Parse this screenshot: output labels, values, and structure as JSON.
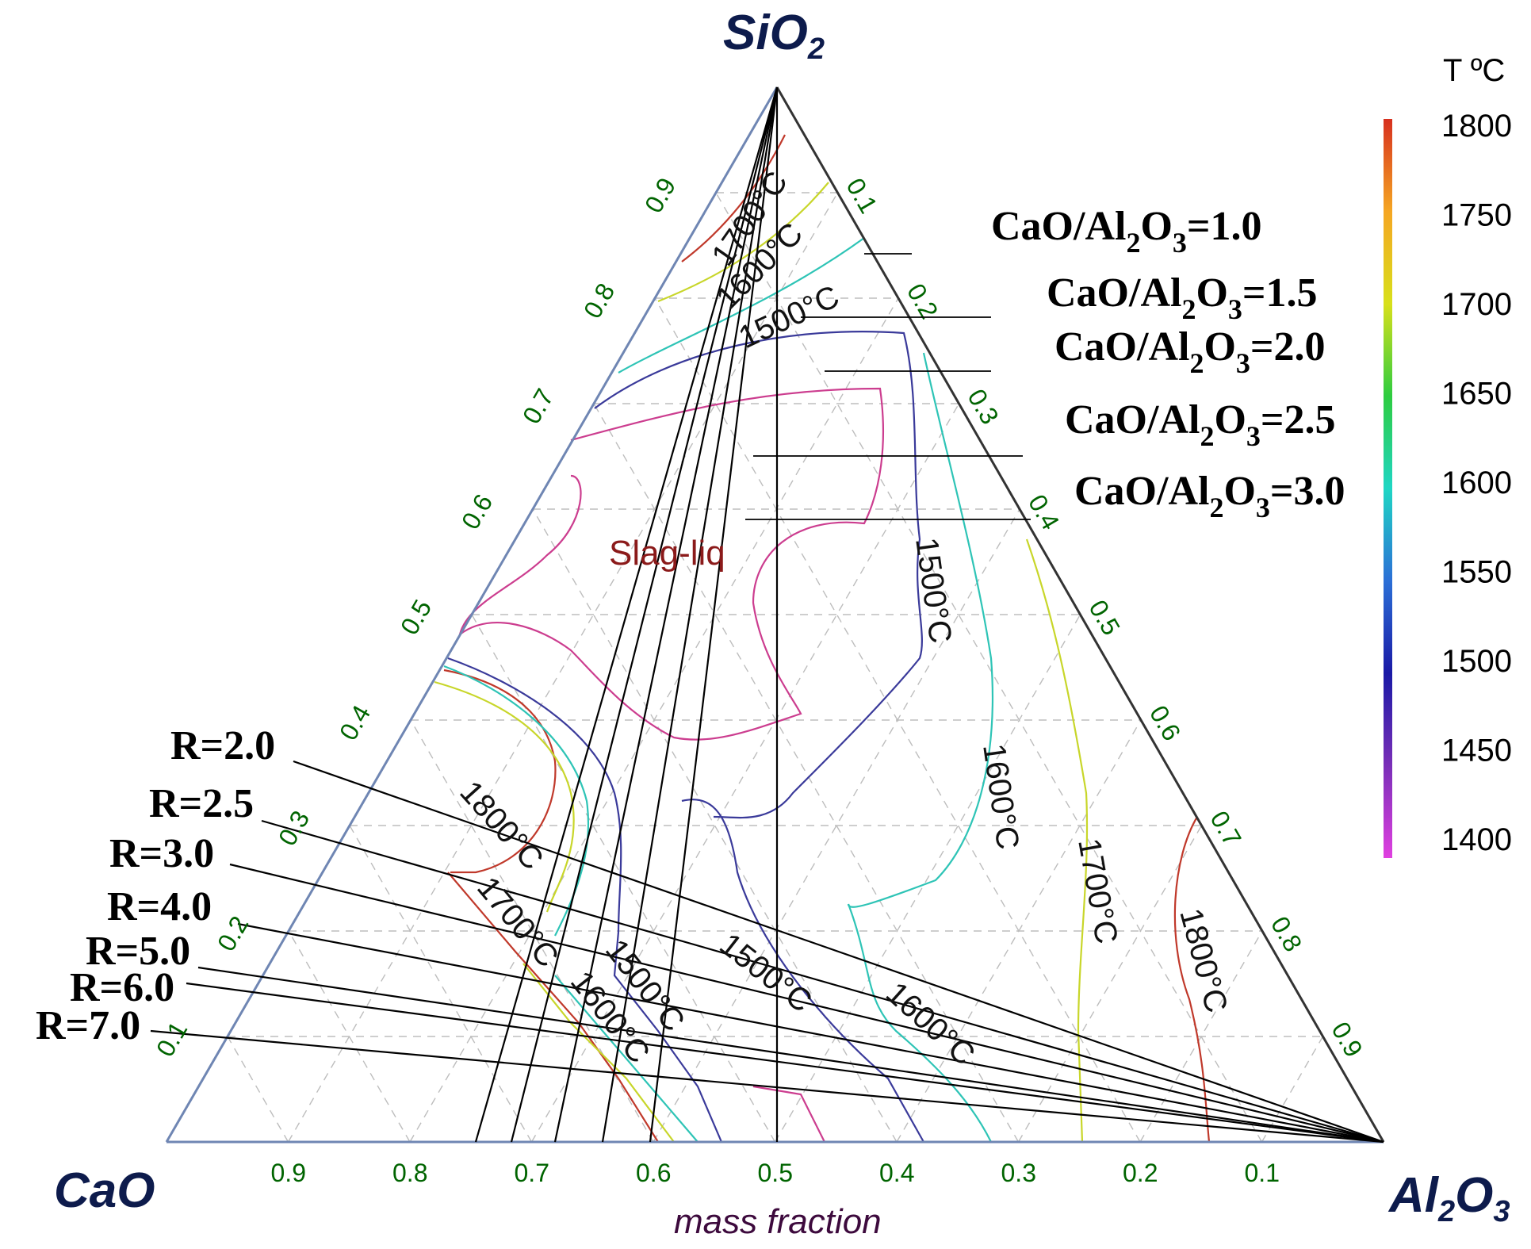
{
  "corners": {
    "top": "SiO",
    "top_sub": "2",
    "left": "CaO",
    "right": "Al",
    "right_sub2": "2",
    "right_o": "O",
    "right_sub3": "3"
  },
  "axis_title": "mass fraction",
  "bottom_ticks": [
    "0.9",
    "0.8",
    "0.7",
    "0.6",
    "0.5",
    "0.4",
    "0.3",
    "0.2",
    "0.1"
  ],
  "left_ticks": [
    "0.1",
    "0.2",
    "0.3",
    "0.4",
    "0.5",
    "0.6",
    "0.7",
    "0.8",
    "0.9"
  ],
  "right_ticks": [
    "0.1",
    "0.2",
    "0.3",
    "0.4",
    "0.5",
    "0.6",
    "0.7",
    "0.8",
    "0.9"
  ],
  "colorbar": {
    "title": "T ºC",
    "labels": [
      "1800",
      "1750",
      "1700",
      "1650",
      "1600",
      "1550",
      "1500",
      "1450",
      "1400"
    ],
    "colors": [
      "#d7301f",
      "#f5a623",
      "#d8e01b",
      "#2ecc40",
      "#1fd6c4",
      "#2b6fd6",
      "#1a1aa6",
      "#7a2fb8",
      "#e040e0"
    ]
  },
  "phase_label": "Slag-liq",
  "ratio_labels": [
    {
      "pre": "CaO/Al",
      "sub1": "2",
      "mid": "O",
      "sub2": "3",
      "post": "=1.0"
    },
    {
      "pre": "CaO/Al",
      "sub1": "2",
      "mid": "O",
      "sub2": "3",
      "post": "=1.5"
    },
    {
      "pre": "CaO/Al",
      "sub1": "2",
      "mid": "O",
      "sub2": "3",
      "post": "=2.0"
    },
    {
      "pre": "CaO/Al",
      "sub1": "2",
      "mid": "O",
      "sub2": "3",
      "post": "=2.5"
    },
    {
      "pre": "CaO/Al",
      "sub1": "2",
      "mid": "O",
      "sub2": "3",
      "post": "=3.0"
    }
  ],
  "r_labels": [
    "R=2.0",
    "R=2.5",
    "R=3.0",
    "R=4.0",
    "R=5.0",
    "R=6.0",
    "R=7.0"
  ],
  "contour_labels": [
    "1700°C",
    "1600°C",
    "1500°C",
    "1500°C",
    "1600°C",
    "1700°C",
    "1800°C",
    "1800°C",
    "1700°C",
    "1500°C",
    "1600°C",
    "1500°C",
    "1600°C"
  ],
  "contour_colors": {
    "t1800": "#c0392b",
    "t1700": "#c8d62a",
    "t1600": "#2ec4b6",
    "t1500": "#3a3a9a",
    "t1450": "#cc3d8f"
  }
}
